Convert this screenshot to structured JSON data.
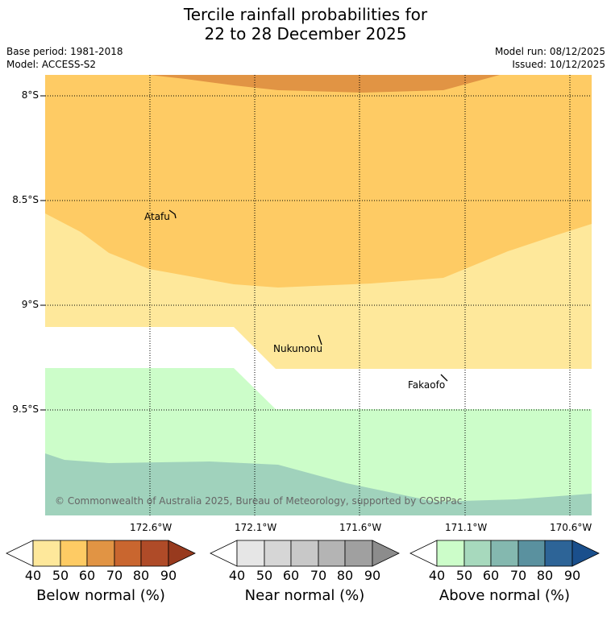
{
  "header": {
    "title_line1": "Tercile rainfall probabilities for",
    "title_line2": "22 to 28 December 2025",
    "base_period": "Base period: 1981-2018",
    "model": "Model: ACCESS-S2",
    "model_run": "Model run: 08/12/2025",
    "issued": "Issued: 10/12/2025"
  },
  "map": {
    "lat_labels": [
      "8°S",
      "8.5°S",
      "9°S",
      "9.5°S"
    ],
    "lon_labels": [
      "172.6°W",
      "172.1°W",
      "171.6°W",
      "171.1°W",
      "170.6°W"
    ],
    "places": [
      "Atafu",
      "Nukunonu",
      "Fakaofo"
    ],
    "copyright": "© Commonwealth of Australia 2025, Bureau of Meteorology, supported by COSPPac",
    "colors": {
      "below_40": "#fee89b",
      "below_50": "#fecb64",
      "below_60": "#e19444",
      "above_40": "#ccfdc9",
      "above_50": "#a0d2bc"
    }
  },
  "colorbars": [
    {
      "name": "below",
      "title": "Below normal (%)",
      "ticks": [
        "40",
        "50",
        "60",
        "70",
        "80",
        "90"
      ],
      "colors": [
        "#ffffff",
        "#fee89b",
        "#fecb64",
        "#e19444",
        "#c9662f",
        "#af4b28",
        "#983a1e"
      ]
    },
    {
      "name": "near",
      "title": "Near normal (%)",
      "ticks": [
        "40",
        "50",
        "60",
        "70",
        "80",
        "90"
      ],
      "colors": [
        "#ffffff",
        "#e6e6e6",
        "#d6d6d6",
        "#c8c8c8",
        "#b4b4b4",
        "#a0a0a0",
        "#8c8c8c"
      ]
    },
    {
      "name": "above",
      "title": "Above normal (%)",
      "ticks": [
        "40",
        "50",
        "60",
        "70",
        "80",
        "90"
      ],
      "colors": [
        "#ffffff",
        "#ccfdc9",
        "#a7d9bd",
        "#84b8af",
        "#5a919f",
        "#2d6497",
        "#1a4f8c"
      ]
    }
  ]
}
